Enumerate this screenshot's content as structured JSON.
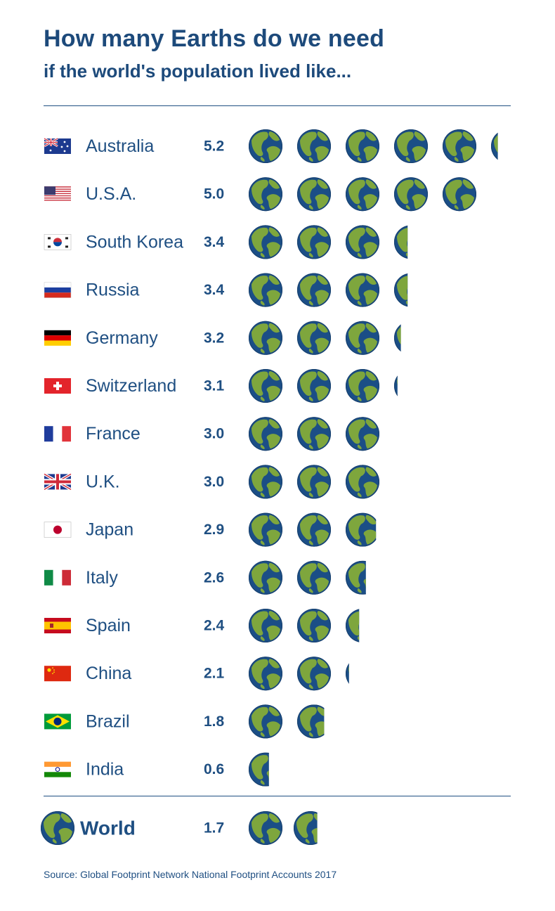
{
  "chart_data": {
    "type": "bar",
    "title": "How many Earths do we need",
    "subtitle": "if the world's population lived like...",
    "categories": [
      "Australia",
      "U.S.A.",
      "South Korea",
      "Russia",
      "Germany",
      "Switzerland",
      "France",
      "U.K.",
      "Japan",
      "Italy",
      "Spain",
      "China",
      "Brazil",
      "India"
    ],
    "values": [
      5.2,
      5.0,
      3.4,
      3.4,
      3.2,
      3.1,
      3.0,
      3.0,
      2.9,
      2.6,
      2.4,
      2.1,
      1.8,
      0.6
    ],
    "value_labels": [
      "5.2",
      "5.0",
      "3.4",
      "3.4",
      "3.2",
      "3.1",
      "3.0",
      "3.0",
      "2.9",
      "2.6",
      "2.4",
      "2.1",
      "1.8",
      "0.6"
    ],
    "flags": [
      "flag-australia",
      "flag-usa",
      "flag-south-korea",
      "flag-russia",
      "flag-germany",
      "flag-switzerland",
      "flag-france",
      "flag-uk",
      "flag-japan",
      "flag-italy",
      "flag-spain",
      "flag-china",
      "flag-brazil",
      "flag-india"
    ],
    "unit_icon": "earth-globe-icon",
    "summary": {
      "label": "World",
      "value": 1.7,
      "value_label": "1.7",
      "icon": "earth-globe-icon"
    },
    "colors": {
      "ocean": "#1b4e86",
      "land": "#7ea63d",
      "text": "#1f4f82",
      "rule": "#1f4f82"
    }
  },
  "source": "Source: Global Footprint Network National Footprint Accounts 2017"
}
